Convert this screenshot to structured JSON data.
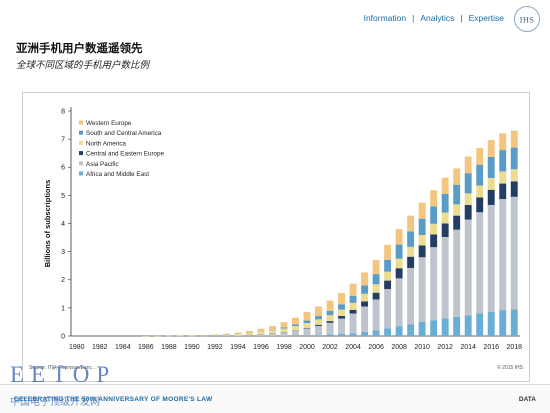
{
  "nav": {
    "items": [
      "Information",
      "Analytics",
      "Expertise"
    ],
    "logo": "IHS"
  },
  "header": {
    "title": "亚洲手机用户数遥遥领先",
    "subtitle": "全球不同区域的手机用户数比例"
  },
  "chart_data": {
    "type": "bar",
    "stacked": true,
    "ylabel": "Billions of subscriptions",
    "xlabel": "",
    "ylim": [
      0,
      8
    ],
    "yticks": [
      0,
      1,
      2,
      3,
      4,
      5,
      6,
      7,
      8
    ],
    "grid": false,
    "legend_position": "top-left",
    "categories": [
      1980,
      1981,
      1982,
      1983,
      1984,
      1985,
      1986,
      1987,
      1988,
      1989,
      1990,
      1991,
      1992,
      1993,
      1994,
      1995,
      1996,
      1997,
      1998,
      1999,
      2000,
      2001,
      2002,
      2003,
      2004,
      2005,
      2006,
      2007,
      2008,
      2009,
      2010,
      2011,
      2012,
      2013,
      2014,
      2015,
      2016,
      2017,
      2018
    ],
    "xtick_labels": [
      "1980",
      "1982",
      "1984",
      "1986",
      "1988",
      "1990",
      "1992",
      "1994",
      "1996",
      "1998",
      "2000",
      "2002",
      "2004",
      "2006",
      "2008",
      "2010",
      "2012",
      "2014",
      "2016",
      "2018"
    ],
    "series": [
      {
        "name": "Africa and Middle East",
        "color": "#6aaed6",
        "values": [
          0,
          0,
          0,
          0,
          0,
          0,
          0,
          0,
          0,
          0,
          0,
          0,
          0,
          0,
          0,
          0,
          0,
          0,
          0,
          0.01,
          0.02,
          0.03,
          0.05,
          0.07,
          0.1,
          0.15,
          0.2,
          0.27,
          0.35,
          0.42,
          0.5,
          0.56,
          0.62,
          0.68,
          0.74,
          0.8,
          0.86,
          0.92,
          0.95
        ]
      },
      {
        "name": "Asia Pacific",
        "color": "#bfc3cc",
        "values": [
          0,
          0,
          0,
          0,
          0,
          0,
          0,
          0,
          0,
          0,
          0.002,
          0.004,
          0.008,
          0.015,
          0.025,
          0.04,
          0.06,
          0.09,
          0.13,
          0.18,
          0.25,
          0.33,
          0.42,
          0.55,
          0.7,
          0.9,
          1.1,
          1.4,
          1.7,
          2.0,
          2.3,
          2.6,
          2.9,
          3.1,
          3.4,
          3.6,
          3.8,
          3.95,
          4.0
        ]
      },
      {
        "name": "Central and Eastern Europe",
        "color": "#233d63",
        "values": [
          0,
          0,
          0,
          0,
          0,
          0,
          0,
          0,
          0,
          0,
          0,
          0,
          0,
          0,
          0,
          0.001,
          0.002,
          0.004,
          0.008,
          0.012,
          0.02,
          0.04,
          0.06,
          0.09,
          0.13,
          0.18,
          0.24,
          0.3,
          0.36,
          0.4,
          0.42,
          0.45,
          0.48,
          0.5,
          0.52,
          0.53,
          0.54,
          0.55,
          0.55
        ]
      },
      {
        "name": "North America",
        "color": "#ecdc90",
        "values": [
          0,
          0,
          0,
          0,
          0,
          0,
          0.001,
          0.002,
          0.003,
          0.005,
          0.01,
          0.015,
          0.02,
          0.03,
          0.05,
          0.07,
          0.09,
          0.11,
          0.13,
          0.15,
          0.17,
          0.19,
          0.21,
          0.23,
          0.25,
          0.27,
          0.3,
          0.32,
          0.34,
          0.35,
          0.37,
          0.38,
          0.39,
          0.4,
          0.41,
          0.42,
          0.42,
          0.43,
          0.43
        ]
      },
      {
        "name": "South and Central America",
        "color": "#5a9cc8",
        "values": [
          0,
          0,
          0,
          0,
          0,
          0,
          0,
          0,
          0,
          0,
          0,
          0.001,
          0.002,
          0.004,
          0.007,
          0.01,
          0.015,
          0.02,
          0.04,
          0.06,
          0.09,
          0.12,
          0.15,
          0.19,
          0.25,
          0.3,
          0.36,
          0.42,
          0.5,
          0.55,
          0.58,
          0.62,
          0.66,
          0.7,
          0.72,
          0.74,
          0.75,
          0.76,
          0.77
        ]
      },
      {
        "name": "Western Europe",
        "color": "#f4c57e",
        "values": [
          0,
          0,
          0,
          0,
          0,
          0,
          0.001,
          0.002,
          0.004,
          0.006,
          0.01,
          0.015,
          0.02,
          0.03,
          0.04,
          0.06,
          0.09,
          0.13,
          0.18,
          0.24,
          0.3,
          0.34,
          0.37,
          0.4,
          0.43,
          0.46,
          0.5,
          0.53,
          0.55,
          0.56,
          0.57,
          0.57,
          0.58,
          0.58,
          0.59,
          0.59,
          0.6,
          0.6,
          0.6
        ]
      }
    ],
    "legend_order": [
      "Western Europe",
      "South and Central America",
      "North America",
      "Central and Eastern Europe",
      "Asia Pacific",
      "Africa and Middle East"
    ],
    "source_note": "Source: ITU, Thomson/Banc…",
    "copyright": "© 2015 IHS"
  },
  "watermark": {
    "main": "EETOP",
    "sub": "中国电子顶级开发网"
  },
  "footer": {
    "left": "CELEBRATING THE 50th ANNIVERSARY OF MOORE'S LAW",
    "right": "DATA"
  }
}
